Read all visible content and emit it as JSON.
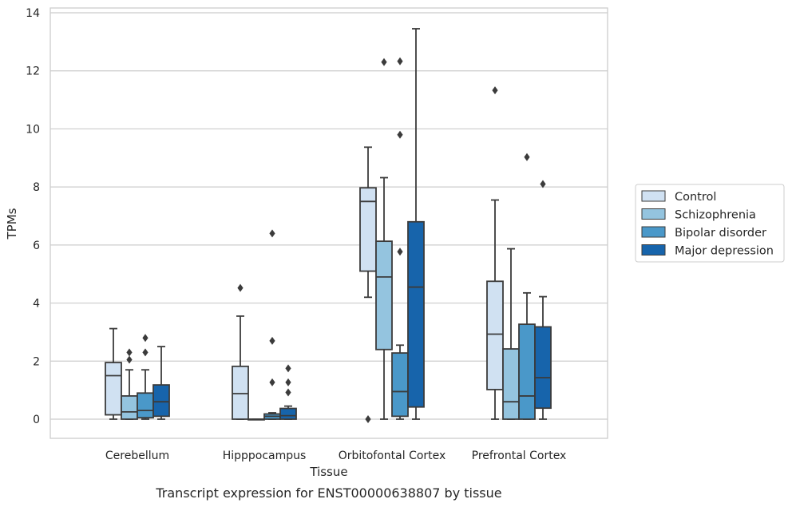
{
  "chart_data": {
    "type": "box",
    "title": "",
    "caption": "Transcript expression for ENST00000638807 by tissue",
    "xlabel": "Tissue",
    "ylabel": "TPMs",
    "ylim": [
      -0.6,
      14.1
    ],
    "yticks": [
      0,
      2,
      4,
      6,
      8,
      10,
      12,
      14
    ],
    "grid": "horizontal",
    "legend_placement": "right",
    "categories": [
      "Cerebellum",
      "Hipppocampus",
      "Orbitofontal Cortex",
      "Prefrontal Cortex"
    ],
    "series": [
      {
        "name": "Control",
        "color": "#d0e1f2",
        "boxes": [
          {
            "whislo": 0.0,
            "q1": 0.15,
            "med": 1.5,
            "q3": 1.95,
            "whishi": 3.12,
            "fliers": []
          },
          {
            "whislo": 0.0,
            "q1": 0.0,
            "med": 0.88,
            "q3": 1.82,
            "whishi": 3.55,
            "fliers": [
              4.52
            ]
          },
          {
            "whislo": 4.2,
            "q1": 5.1,
            "med": 7.5,
            "q3": 7.97,
            "whishi": 9.37,
            "fliers": [
              0.0
            ]
          },
          {
            "whislo": 0.0,
            "q1": 1.02,
            "med": 2.93,
            "q3": 4.75,
            "whishi": 7.55,
            "fliers": [
              11.33
            ]
          }
        ]
      },
      {
        "name": "Schizophrenia",
        "color": "#94c4df",
        "boxes": [
          {
            "whislo": 0.0,
            "q1": 0.0,
            "med": 0.25,
            "q3": 0.8,
            "whishi": 1.7,
            "fliers": [
              2.3,
              2.05
            ]
          },
          {
            "whislo": 0.0,
            "q1": 0.0,
            "med": 0.0,
            "q3": 0.0,
            "whishi": 0.0,
            "fliers": []
          },
          {
            "whislo": 0.0,
            "q1": 2.4,
            "med": 4.9,
            "q3": 6.13,
            "whishi": 8.32,
            "fliers": [
              12.3
            ]
          },
          {
            "whislo": 0.0,
            "q1": 0.0,
            "med": 0.6,
            "q3": 2.42,
            "whishi": 5.87,
            "fliers": []
          }
        ]
      },
      {
        "name": "Bipolar disorder",
        "color": "#4a98c9",
        "boxes": [
          {
            "whislo": 0.0,
            "q1": 0.05,
            "med": 0.3,
            "q3": 0.9,
            "whishi": 1.7,
            "fliers": [
              2.8,
              2.3
            ]
          },
          {
            "whislo": 0.0,
            "q1": 0.0,
            "med": 0.1,
            "q3": 0.18,
            "whishi": 0.22,
            "fliers": [
              6.4,
              2.7,
              1.27
            ]
          },
          {
            "whislo": 0.0,
            "q1": 0.1,
            "med": 0.95,
            "q3": 2.28,
            "whishi": 2.55,
            "fliers": [
              12.33,
              9.8,
              5.77
            ]
          },
          {
            "whislo": 0.0,
            "q1": 0.0,
            "med": 0.8,
            "q3": 3.27,
            "whishi": 4.35,
            "fliers": [
              9.03
            ]
          }
        ]
      },
      {
        "name": "Major depression",
        "color": "#1764ab",
        "boxes": [
          {
            "whislo": 0.0,
            "q1": 0.1,
            "med": 0.6,
            "q3": 1.18,
            "whishi": 2.5,
            "fliers": []
          },
          {
            "whislo": 0.0,
            "q1": 0.0,
            "med": 0.12,
            "q3": 0.37,
            "whishi": 0.45,
            "fliers": [
              1.75,
              1.27,
              0.92
            ]
          },
          {
            "whislo": 0.0,
            "q1": 0.42,
            "med": 4.55,
            "q3": 6.8,
            "whishi": 13.45,
            "fliers": []
          },
          {
            "whislo": 0.0,
            "q1": 0.38,
            "med": 1.43,
            "q3": 3.18,
            "whishi": 4.22,
            "fliers": [
              8.1
            ]
          }
        ]
      }
    ]
  }
}
